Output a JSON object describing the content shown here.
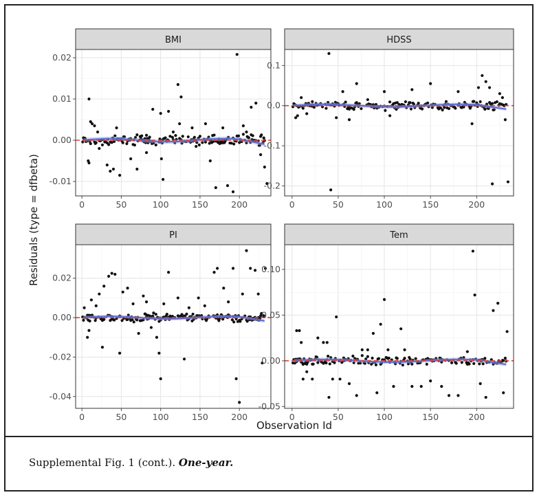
{
  "caption": {
    "prefix": "Supplemental Fig. 1 (cont.). ",
    "emphasis": "One-year."
  },
  "chart_data": {
    "type": "scatter",
    "xlabel": "Observation Id",
    "ylabel": "Residuals (type = dfbeta)",
    "grid": true,
    "reference_line": {
      "y": 0,
      "color": "#e0403a",
      "style": "dashed"
    },
    "smooth_color": "#5b6bd6",
    "point_color": "#111111",
    "panels": [
      {
        "title": "BMI",
        "xlim": [
          -8,
          240
        ],
        "ylim": [
          -0.0135,
          0.022
        ],
        "xticks": [
          0,
          50,
          100,
          150,
          200
        ],
        "yticks": [
          0.02,
          0.01,
          0.0,
          -0.01
        ],
        "ytick_labels": [
          "0.02",
          "0.01",
          "0.00",
          "-0.01"
        ],
        "outliers": [
          [
            9,
            0.01
          ],
          [
            11,
            0.0045
          ],
          [
            13,
            0.004
          ],
          [
            16,
            0.0035
          ],
          [
            8,
            -0.005
          ],
          [
            9,
            -0.0055
          ],
          [
            20,
            0.002
          ],
          [
            22,
            -0.002
          ],
          [
            32,
            -0.006
          ],
          [
            36,
            -0.0075
          ],
          [
            40,
            -0.007
          ],
          [
            48,
            -0.0085
          ],
          [
            44,
            0.003
          ],
          [
            62,
            -0.0045
          ],
          [
            70,
            -0.007
          ],
          [
            82,
            -0.003
          ],
          [
            90,
            0.0075
          ],
          [
            100,
            0.0065
          ],
          [
            101,
            -0.0045
          ],
          [
            103,
            -0.0095
          ],
          [
            110,
            0.007
          ],
          [
            116,
            0.002
          ],
          [
            122,
            0.0135
          ],
          [
            126,
            0.0105
          ],
          [
            124,
            0.004
          ],
          [
            140,
            0.003
          ],
          [
            145,
            -0.0015
          ],
          [
            157,
            0.004
          ],
          [
            163,
            -0.005
          ],
          [
            170,
            -0.0115
          ],
          [
            179,
            0.003
          ],
          [
            185,
            -0.011
          ],
          [
            192,
            -0.0125
          ],
          [
            197,
            0.0208
          ],
          [
            205,
            0.0035
          ],
          [
            209,
            0.002
          ],
          [
            215,
            0.008
          ],
          [
            221,
            0.009
          ],
          [
            227,
            -0.0035
          ],
          [
            232,
            -0.0065
          ],
          [
            235,
            -0.0105
          ]
        ],
        "scatter_amp": 0.0015,
        "seed": 11
      },
      {
        "title": "HDSS",
        "xlim": [
          -8,
          240
        ],
        "ylim": [
          -0.225,
          0.14
        ],
        "xticks": [
          0,
          50,
          100,
          150,
          200
        ],
        "yticks": [
          0.1,
          0.0,
          -0.1,
          -0.2
        ],
        "ytick_labels": [
          "0.1",
          "0.0",
          "-0.1",
          "-0.2"
        ],
        "outliers": [
          [
            4,
            -0.03
          ],
          [
            6,
            -0.025
          ],
          [
            10,
            0.02
          ],
          [
            16,
            -0.02
          ],
          [
            22,
            0.01
          ],
          [
            40,
            0.13
          ],
          [
            42,
            -0.21
          ],
          [
            48,
            -0.03
          ],
          [
            55,
            0.035
          ],
          [
            62,
            -0.035
          ],
          [
            70,
            0.055
          ],
          [
            82,
            0.015
          ],
          [
            100,
            0.035
          ],
          [
            106,
            -0.025
          ],
          [
            130,
            0.04
          ],
          [
            150,
            0.055
          ],
          [
            180,
            0.035
          ],
          [
            195,
            -0.045
          ],
          [
            202,
            0.045
          ],
          [
            206,
            0.075
          ],
          [
            210,
            0.06
          ],
          [
            214,
            0.045
          ],
          [
            217,
            -0.195
          ],
          [
            225,
            0.03
          ],
          [
            228,
            0.02
          ],
          [
            231,
            -0.035
          ],
          [
            234,
            -0.19
          ]
        ],
        "scatter_amp": 0.013,
        "seed": 23
      },
      {
        "title": "PI",
        "xlim": [
          -8,
          240
        ],
        "ylim": [
          -0.046,
          0.037
        ],
        "xticks": [
          0,
          50,
          100,
          150,
          200
        ],
        "yticks": [
          0.02,
          0.0,
          -0.02,
          -0.04
        ],
        "ytick_labels": [
          "0.02",
          "0.00",
          "-0.02",
          "-0.04"
        ],
        "outliers": [
          [
            3,
            0.005
          ],
          [
            7,
            -0.01
          ],
          [
            9,
            -0.0065
          ],
          [
            12,
            0.009
          ],
          [
            18,
            0.006
          ],
          [
            22,
            0.012
          ],
          [
            26,
            -0.015
          ],
          [
            28,
            0.016
          ],
          [
            34,
            0.021
          ],
          [
            38,
            0.0225
          ],
          [
            42,
            0.022
          ],
          [
            48,
            -0.018
          ],
          [
            52,
            0.013
          ],
          [
            58,
            0.015
          ],
          [
            65,
            0.007
          ],
          [
            72,
            -0.008
          ],
          [
            78,
            0.011
          ],
          [
            82,
            0.008
          ],
          [
            88,
            -0.005
          ],
          [
            95,
            -0.01
          ],
          [
            98,
            -0.018
          ],
          [
            100,
            -0.031
          ],
          [
            104,
            0.007
          ],
          [
            110,
            0.023
          ],
          [
            122,
            0.01
          ],
          [
            130,
            -0.021
          ],
          [
            136,
            0.005
          ],
          [
            148,
            0.01
          ],
          [
            156,
            0.006
          ],
          [
            168,
            0.023
          ],
          [
            172,
            0.025
          ],
          [
            180,
            0.015
          ],
          [
            186,
            0.008
          ],
          [
            192,
            0.025
          ],
          [
            196,
            -0.031
          ],
          [
            200,
            -0.043
          ],
          [
            204,
            0.012
          ],
          [
            209,
            0.034
          ],
          [
            214,
            0.025
          ],
          [
            220,
            0.024
          ],
          [
            224,
            0.012
          ],
          [
            229,
            -0.023
          ],
          [
            233,
            0.025
          ]
        ],
        "scatter_amp": 0.0025,
        "seed": 37
      },
      {
        "title": "Tem",
        "xlim": [
          -8,
          240
        ],
        "ylim": [
          -0.052,
          0.127
        ],
        "xticks": [
          0,
          50,
          100,
          150,
          200
        ],
        "yticks": [
          0.1,
          0.05,
          0.0,
          -0.05
        ],
        "ytick_labels": [
          "0.10",
          "0.05",
          "0.00",
          "-0.05"
        ],
        "outliers": [
          [
            5,
            0.033
          ],
          [
            8,
            0.033
          ],
          [
            10,
            0.02
          ],
          [
            12,
            -0.02
          ],
          [
            16,
            -0.012
          ],
          [
            22,
            -0.02
          ],
          [
            28,
            0.025
          ],
          [
            34,
            0.02
          ],
          [
            38,
            0.02
          ],
          [
            40,
            -0.04
          ],
          [
            44,
            -0.02
          ],
          [
            48,
            0.048
          ],
          [
            52,
            -0.02
          ],
          [
            62,
            -0.025
          ],
          [
            70,
            -0.038
          ],
          [
            76,
            0.012
          ],
          [
            82,
            0.012
          ],
          [
            88,
            0.03
          ],
          [
            92,
            -0.035
          ],
          [
            96,
            0.04
          ],
          [
            100,
            0.067
          ],
          [
            104,
            0.012
          ],
          [
            110,
            -0.028
          ],
          [
            118,
            0.035
          ],
          [
            122,
            0.012
          ],
          [
            130,
            -0.028
          ],
          [
            140,
            -0.028
          ],
          [
            150,
            -0.022
          ],
          [
            162,
            -0.028
          ],
          [
            170,
            -0.038
          ],
          [
            180,
            -0.038
          ],
          [
            190,
            0.01
          ],
          [
            196,
            0.12
          ],
          [
            198,
            0.072
          ],
          [
            204,
            -0.025
          ],
          [
            210,
            -0.04
          ],
          [
            218,
            0.055
          ],
          [
            223,
            0.063
          ],
          [
            229,
            -0.035
          ],
          [
            233,
            0.032
          ]
        ],
        "scatter_amp": 0.006,
        "seed": 53
      }
    ]
  }
}
